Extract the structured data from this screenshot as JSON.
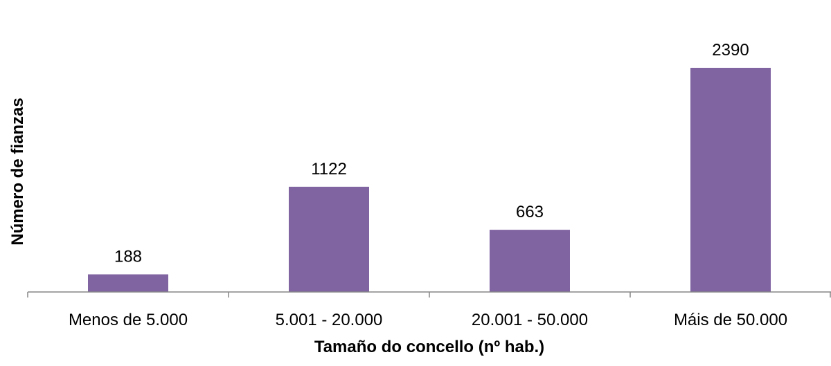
{
  "chart_data": {
    "type": "bar",
    "title": "",
    "categories": [
      "Menos de 5.000",
      "5.001 - 20.000",
      "20.001 - 50.000",
      "Máis de 50.000"
    ],
    "values": [
      188,
      1122,
      663,
      2390
    ],
    "data_labels": [
      "188",
      "1122",
      "663",
      "2390"
    ],
    "xlabel": "Tamaño do concello (nº hab.)",
    "ylabel": "Número de fianzas",
    "ylim": [
      0,
      2390
    ],
    "grid": false,
    "legend": "none",
    "bar_color": "#8064a2",
    "axis_color": "#868686"
  }
}
